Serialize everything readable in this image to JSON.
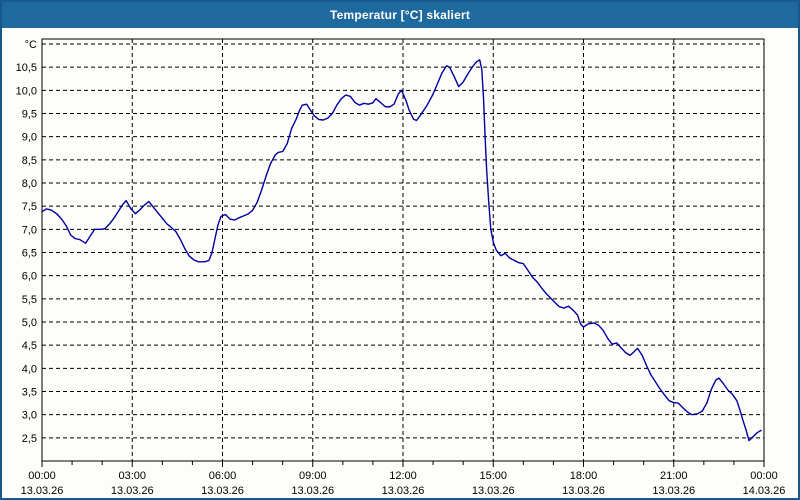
{
  "window": {
    "title": "Temperatur [°C] skaliert",
    "titlebar_color": "#1e6a9e",
    "border_color": "#16598e",
    "background": "#fdfefa"
  },
  "chart_data": {
    "type": "line",
    "title": "Temperatur [°C] skaliert",
    "grid": {
      "style": "dashed",
      "color": "#000000"
    },
    "legend": "none",
    "y_axis": {
      "unit_top_label": "°C",
      "min": 2.0,
      "max": 11.0,
      "gridline_step": 0.5,
      "labels": [
        {
          "value": 2.5,
          "text": "2,5"
        },
        {
          "value": 3.0,
          "text": "3,0"
        },
        {
          "value": 3.5,
          "text": "3,5"
        },
        {
          "value": 4.0,
          "text": "4,0"
        },
        {
          "value": 4.5,
          "text": "4,5"
        },
        {
          "value": 5.0,
          "text": "5,0"
        },
        {
          "value": 5.5,
          "text": "5,5"
        },
        {
          "value": 6.0,
          "text": "6,0"
        },
        {
          "value": 6.5,
          "text": "6,5"
        },
        {
          "value": 7.0,
          "text": "7,0"
        },
        {
          "value": 7.5,
          "text": "7,5"
        },
        {
          "value": 8.0,
          "text": "8,0"
        },
        {
          "value": 8.5,
          "text": "8,5"
        },
        {
          "value": 9.0,
          "text": "9,0"
        },
        {
          "value": 9.5,
          "text": "9,5"
        },
        {
          "value": 10.0,
          "text": "10,0"
        },
        {
          "value": 10.5,
          "text": "10,5"
        }
      ]
    },
    "x_axis": {
      "range_hours": [
        0,
        24
      ],
      "major_step_hours": 3,
      "minor_step_hours": 1,
      "ticks": [
        {
          "hour": 0,
          "time": "00:00",
          "date": "13.03.26"
        },
        {
          "hour": 3,
          "time": "03:00",
          "date": "13.03.26"
        },
        {
          "hour": 6,
          "time": "06:00",
          "date": "13.03.26"
        },
        {
          "hour": 9,
          "time": "09:00",
          "date": "13.03.26"
        },
        {
          "hour": 12,
          "time": "12:00",
          "date": "13.03.26"
        },
        {
          "hour": 15,
          "time": "15:00",
          "date": "13.03.26"
        },
        {
          "hour": 18,
          "time": "18:00",
          "date": "13.03.26"
        },
        {
          "hour": 21,
          "time": "21:00",
          "date": "13.03.26"
        },
        {
          "hour": 24,
          "time": "00:00",
          "date": "14.03.26"
        }
      ]
    },
    "series": [
      {
        "name": "Temperatur",
        "color": "#0000a0",
        "points": [
          [
            0.0,
            7.38
          ],
          [
            0.15,
            7.44
          ],
          [
            0.3,
            7.42
          ],
          [
            0.5,
            7.33
          ],
          [
            0.65,
            7.22
          ],
          [
            0.8,
            7.08
          ],
          [
            0.95,
            6.88
          ],
          [
            1.1,
            6.8
          ],
          [
            1.25,
            6.78
          ],
          [
            1.45,
            6.7
          ],
          [
            1.6,
            6.85
          ],
          [
            1.75,
            7.0
          ],
          [
            2.0,
            7.0
          ],
          [
            2.1,
            7.02
          ],
          [
            2.25,
            7.12
          ],
          [
            2.4,
            7.25
          ],
          [
            2.55,
            7.4
          ],
          [
            2.7,
            7.55
          ],
          [
            2.8,
            7.62
          ],
          [
            2.95,
            7.45
          ],
          [
            3.1,
            7.34
          ],
          [
            3.25,
            7.42
          ],
          [
            3.4,
            7.52
          ],
          [
            3.55,
            7.6
          ],
          [
            3.7,
            7.48
          ],
          [
            3.85,
            7.36
          ],
          [
            4.0,
            7.24
          ],
          [
            4.15,
            7.12
          ],
          [
            4.3,
            7.04
          ],
          [
            4.45,
            6.95
          ],
          [
            4.6,
            6.78
          ],
          [
            4.75,
            6.58
          ],
          [
            4.9,
            6.42
          ],
          [
            5.05,
            6.34
          ],
          [
            5.2,
            6.3
          ],
          [
            5.4,
            6.3
          ],
          [
            5.55,
            6.33
          ],
          [
            5.65,
            6.5
          ],
          [
            5.75,
            6.8
          ],
          [
            5.85,
            7.1
          ],
          [
            5.95,
            7.28
          ],
          [
            6.1,
            7.32
          ],
          [
            6.25,
            7.22
          ],
          [
            6.4,
            7.2
          ],
          [
            6.55,
            7.25
          ],
          [
            6.7,
            7.29
          ],
          [
            6.85,
            7.33
          ],
          [
            7.0,
            7.41
          ],
          [
            7.15,
            7.58
          ],
          [
            7.3,
            7.85
          ],
          [
            7.45,
            8.15
          ],
          [
            7.6,
            8.42
          ],
          [
            7.75,
            8.6
          ],
          [
            7.85,
            8.66
          ],
          [
            8.0,
            8.68
          ],
          [
            8.15,
            8.85
          ],
          [
            8.3,
            9.18
          ],
          [
            8.45,
            9.38
          ],
          [
            8.55,
            9.55
          ],
          [
            8.65,
            9.68
          ],
          [
            8.8,
            9.7
          ],
          [
            8.95,
            9.55
          ],
          [
            9.05,
            9.45
          ],
          [
            9.2,
            9.37
          ],
          [
            9.35,
            9.36
          ],
          [
            9.5,
            9.4
          ],
          [
            9.65,
            9.5
          ],
          [
            9.8,
            9.68
          ],
          [
            9.95,
            9.82
          ],
          [
            10.1,
            9.9
          ],
          [
            10.25,
            9.87
          ],
          [
            10.4,
            9.74
          ],
          [
            10.55,
            9.68
          ],
          [
            10.7,
            9.72
          ],
          [
            10.85,
            9.7
          ],
          [
            11.0,
            9.73
          ],
          [
            11.1,
            9.82
          ],
          [
            11.25,
            9.74
          ],
          [
            11.4,
            9.65
          ],
          [
            11.55,
            9.64
          ],
          [
            11.7,
            9.7
          ],
          [
            11.85,
            9.93
          ],
          [
            11.95,
            10.0
          ],
          [
            12.1,
            9.78
          ],
          [
            12.2,
            9.58
          ],
          [
            12.35,
            9.38
          ],
          [
            12.45,
            9.35
          ],
          [
            12.6,
            9.48
          ],
          [
            12.8,
            9.68
          ],
          [
            13.0,
            9.92
          ],
          [
            13.15,
            10.15
          ],
          [
            13.3,
            10.38
          ],
          [
            13.45,
            10.53
          ],
          [
            13.55,
            10.5
          ],
          [
            13.7,
            10.3
          ],
          [
            13.85,
            10.08
          ],
          [
            14.0,
            10.18
          ],
          [
            14.15,
            10.35
          ],
          [
            14.3,
            10.5
          ],
          [
            14.45,
            10.62
          ],
          [
            14.55,
            10.66
          ],
          [
            14.62,
            10.45
          ],
          [
            14.68,
            9.8
          ],
          [
            14.73,
            9.0
          ],
          [
            14.78,
            8.3
          ],
          [
            14.85,
            7.6
          ],
          [
            14.92,
            7.0
          ],
          [
            15.0,
            6.72
          ],
          [
            15.1,
            6.55
          ],
          [
            15.25,
            6.43
          ],
          [
            15.4,
            6.48
          ],
          [
            15.55,
            6.38
          ],
          [
            15.7,
            6.33
          ],
          [
            15.85,
            6.28
          ],
          [
            16.0,
            6.26
          ],
          [
            16.15,
            6.12
          ],
          [
            16.3,
            5.97
          ],
          [
            16.45,
            5.87
          ],
          [
            16.6,
            5.74
          ],
          [
            16.75,
            5.62
          ],
          [
            16.9,
            5.52
          ],
          [
            17.05,
            5.42
          ],
          [
            17.2,
            5.33
          ],
          [
            17.35,
            5.3
          ],
          [
            17.5,
            5.34
          ],
          [
            17.65,
            5.26
          ],
          [
            17.8,
            5.15
          ],
          [
            17.9,
            4.96
          ],
          [
            18.0,
            4.89
          ],
          [
            18.15,
            4.96
          ],
          [
            18.35,
            4.98
          ],
          [
            18.5,
            4.93
          ],
          [
            18.65,
            4.82
          ],
          [
            18.8,
            4.65
          ],
          [
            18.95,
            4.52
          ],
          [
            19.1,
            4.55
          ],
          [
            19.25,
            4.44
          ],
          [
            19.4,
            4.34
          ],
          [
            19.55,
            4.28
          ],
          [
            19.8,
            4.43
          ],
          [
            19.95,
            4.28
          ],
          [
            20.1,
            4.05
          ],
          [
            20.25,
            3.85
          ],
          [
            20.4,
            3.7
          ],
          [
            20.55,
            3.55
          ],
          [
            20.7,
            3.42
          ],
          [
            20.85,
            3.3
          ],
          [
            21.0,
            3.26
          ],
          [
            21.15,
            3.25
          ],
          [
            21.3,
            3.15
          ],
          [
            21.45,
            3.06
          ],
          [
            21.6,
            3.0
          ],
          [
            21.8,
            3.02
          ],
          [
            21.95,
            3.08
          ],
          [
            22.1,
            3.25
          ],
          [
            22.25,
            3.55
          ],
          [
            22.4,
            3.75
          ],
          [
            22.5,
            3.79
          ],
          [
            22.65,
            3.67
          ],
          [
            22.8,
            3.53
          ],
          [
            22.95,
            3.44
          ],
          [
            23.1,
            3.3
          ],
          [
            23.2,
            3.1
          ],
          [
            23.3,
            2.88
          ],
          [
            23.4,
            2.68
          ],
          [
            23.5,
            2.44
          ],
          [
            23.6,
            2.5
          ],
          [
            23.75,
            2.6
          ],
          [
            23.9,
            2.66
          ]
        ]
      }
    ]
  }
}
